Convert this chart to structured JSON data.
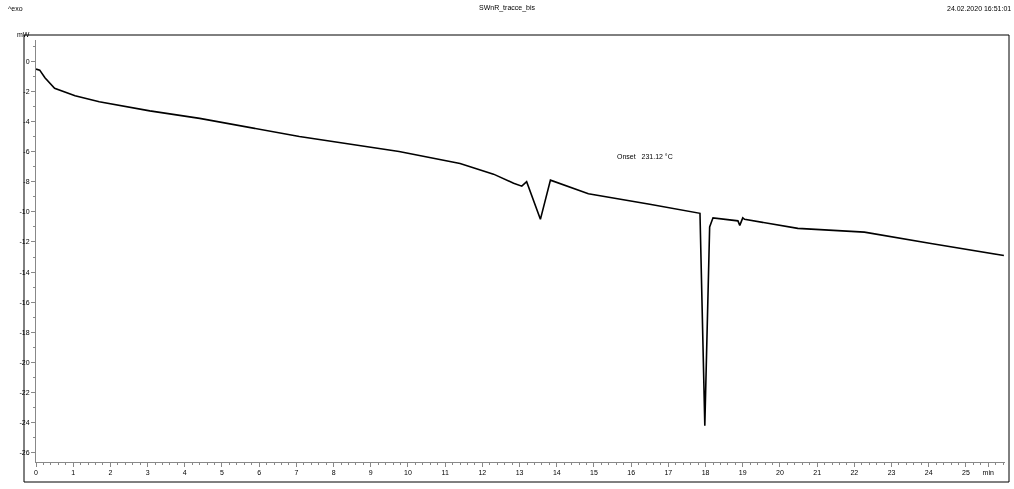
{
  "chart_data": {
    "type": "line",
    "title": "SWnR_tracce_bis",
    "ylabel": "mW",
    "annotations": [
      "^exo",
      "24.02.2020 16:51:01",
      "Onset   231.12 °C"
    ],
    "series": [
      {
        "color": "#000000",
        "x": [
          0,
          0.1,
          0.24,
          0.5,
          1.05,
          1.7,
          3.06,
          4.4,
          7.08,
          9.76,
          11.4,
          12.3,
          12.84,
          13.06,
          13.19,
          13.56,
          13.83,
          14.85,
          16.5,
          17.85,
          17.98,
          18.11,
          18.2,
          18.87,
          18.92,
          19.0,
          19.05,
          20.48,
          22.27,
          24.06,
          26.02
        ],
        "values": [
          -0.53,
          -0.6,
          -1.1,
          -1.8,
          -2.3,
          -2.7,
          -3.3,
          -3.8,
          -5.0,
          -6.0,
          -6.8,
          -7.5,
          -8.1,
          -8.3,
          -8.0,
          -10.5,
          -7.9,
          -8.8,
          -9.5,
          -10.1,
          -24.2,
          -11.0,
          -10.4,
          -10.6,
          -10.9,
          -10.4,
          -10.5,
          -11.1,
          -11.35,
          -12.1,
          -12.9
        ]
      }
    ],
    "xlim": [
      0,
      26.05
    ],
    "xticks": [
      0,
      1,
      2,
      3,
      4,
      5,
      6,
      7,
      8,
      9,
      10,
      11,
      12,
      13,
      14,
      15,
      16,
      17,
      18,
      19,
      20,
      21,
      22,
      23,
      24,
      25,
      {
        "value": 25.6,
        "label": "min"
      }
    ],
    "ylim": [
      -26.6,
      1.4
    ],
    "yticks": [
      -26,
      -24,
      -22,
      -20,
      -18,
      -16,
      -14,
      -12,
      -10,
      -8,
      -6,
      -4,
      -2,
      0
    ],
    "marker": "none",
    "line_style": "solid"
  }
}
